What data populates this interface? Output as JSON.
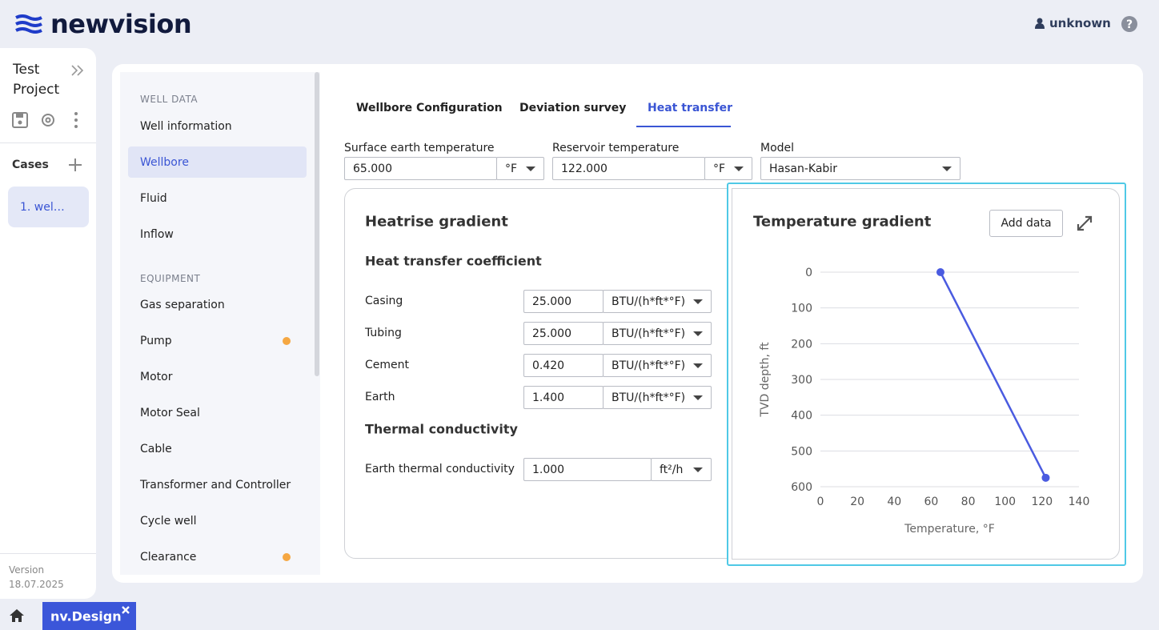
{
  "header": {
    "brand": "newvision",
    "user": "unknown"
  },
  "project": {
    "title_line1": "Test",
    "title_line2": "Project",
    "cases_label": "Cases",
    "cases": [
      "1. wel…"
    ],
    "version_label": "Version",
    "version": "18.07.2025"
  },
  "nav": {
    "sections": [
      {
        "title": "WELL DATA",
        "items": [
          "Well information",
          "Wellbore",
          "Fluid",
          "Inflow"
        ]
      },
      {
        "title": "EQUIPMENT",
        "items": [
          "Gas separation",
          "Pump",
          "Motor",
          "Motor Seal",
          "Cable",
          "Transformer and Controller",
          "Cycle well",
          "Clearance"
        ]
      }
    ]
  },
  "tabs": [
    "Wellbore Configuration",
    "Deviation survey",
    "Heat transfer"
  ],
  "fields": [
    {
      "label": "Surface earth temperature",
      "value": "65.000",
      "unit": "°F"
    },
    {
      "label": "Reservoir temperature",
      "value": "122.000",
      "unit": "°F"
    },
    {
      "label": "Model",
      "value": "Hasan-Kabir"
    }
  ],
  "heatrise": {
    "title": "Heatrise gradient",
    "coefficient_title": "Heat transfer coefficient",
    "coefficients": [
      {
        "label": "Casing",
        "value": "25.000",
        "unit": "BTU/(h*ft*°F)"
      },
      {
        "label": "Tubing",
        "value": "25.000",
        "unit": "BTU/(h*ft*°F)"
      },
      {
        "label": "Cement",
        "value": "0.420",
        "unit": "BTU/(h*ft*°F)"
      },
      {
        "label": "Earth",
        "value": "1.400",
        "unit": "BTU/(h*ft*°F)"
      }
    ],
    "conductivity_title": "Thermal conductivity",
    "conductivity": [
      {
        "label": "Earth thermal conductivity",
        "value": "1.000",
        "unit": "ft²/h"
      }
    ]
  },
  "chart_data": {
    "type": "line",
    "title": "Temperature gradient",
    "button": "Add data",
    "xlabel": "Temperature, °F",
    "ylabel": "TVD depth, ft",
    "x": [
      65,
      122
    ],
    "values": [
      0,
      575
    ],
    "color": "#4a5be0",
    "xlim": [
      0,
      140
    ],
    "xticks": [
      0,
      20,
      40,
      60,
      80,
      100,
      120,
      140
    ],
    "ylim": [
      0,
      600
    ],
    "yticks": [
      0,
      100,
      200,
      300,
      400,
      500,
      600
    ],
    "y_inverted": true,
    "grid": true
  },
  "footer": {
    "app": "nv.Design"
  }
}
